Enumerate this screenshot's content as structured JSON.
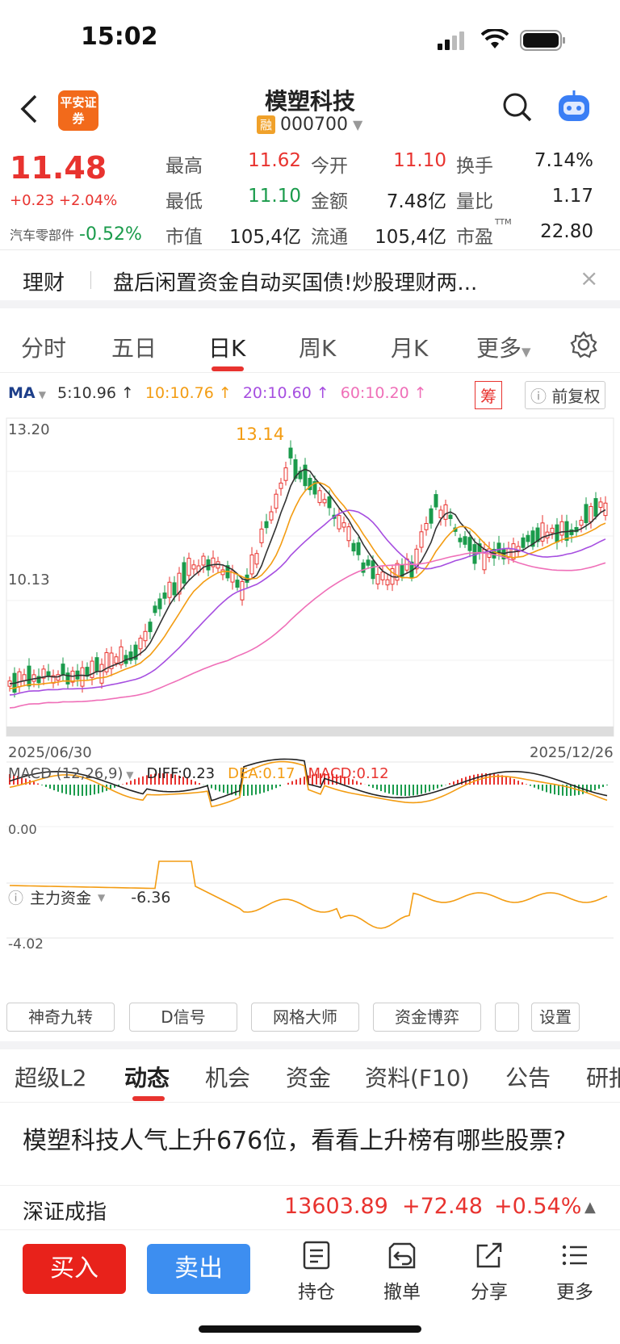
{
  "status": {
    "time": "15:02"
  },
  "header": {
    "title": "模塑科技",
    "badge": "融",
    "code": "000700",
    "broker_logo": "平安证券"
  },
  "quote": {
    "price": "11.48",
    "change": "+0.23",
    "change_pct": "+2.04%",
    "sector_name": "汽车零部件",
    "sector_pct": "-0.52%",
    "high_label": "最高",
    "high": "11.62",
    "open_label": "今开",
    "open": "11.10",
    "turnover_label": "换手",
    "turnover": "7.14%",
    "low_label": "最低",
    "low": "11.10",
    "amount_label": "金额",
    "amount": "7.48亿",
    "volratio_label": "量比",
    "volratio": "1.17",
    "mcap_label": "市值",
    "mcap": "105,4亿",
    "float_label": "流通",
    "float": "105,4亿",
    "pe_label": "市盈",
    "pe_sup": "TTM",
    "pe": "22.80"
  },
  "banner": {
    "tag": "理财",
    "text": "盘后闲置资金自动买国债!炒股理财两...",
    "close": "×"
  },
  "kline_tabs": {
    "items": [
      "分时",
      "五日",
      "日K",
      "周K",
      "月K",
      "更多"
    ],
    "active": "日K"
  },
  "ma": {
    "label": "MA",
    "ma5": "5:10.96 ↑",
    "ma10": "10:10.76 ↑",
    "ma20": "20:10.60 ↑",
    "ma60": "60:10.20 ↑",
    "chou": "筹",
    "fuquan": "前复权"
  },
  "chart": {
    "y_top": "13.20",
    "y_mid": "10.13",
    "peak_label": "13.14",
    "date_start": "2025/06/30",
    "date_end": "2025/12/26",
    "macd_label": "MACD (12,26,9)",
    "diff": "DIFF:0.23",
    "dea": "DEA:0.17",
    "macd": "MACD:0.12",
    "macd_zero": "0.00",
    "funds_label": "主力资金",
    "funds_value": "-6.36",
    "funds_axis": "-4.02",
    "colors": {
      "ma5": "#333333",
      "ma10": "#f39c12",
      "ma20": "#a64ee0",
      "ma60": "#ef6fb8",
      "up": "#e8332f",
      "down": "#1a9b4b"
    }
  },
  "tools": [
    "神奇九转",
    "D信号",
    "网格大师",
    "资金博弈",
    "",
    "设置"
  ],
  "info_tabs": {
    "items": [
      "超级L2",
      "动态",
      "机会",
      "资金",
      "资料(F10)",
      "公告",
      "研报"
    ],
    "active": "动态"
  },
  "news": {
    "headline": "模塑科技人气上升676位，看看上升榜有哪些股票?"
  },
  "index": {
    "name": "深证成指",
    "value": "13603.89",
    "change": "+72.48",
    "pct": "+0.54%"
  },
  "bottom": {
    "buy": "买入",
    "sell": "卖出",
    "hold": "持仓",
    "cancel": "撤单",
    "share": "分享",
    "more": "更多"
  }
}
